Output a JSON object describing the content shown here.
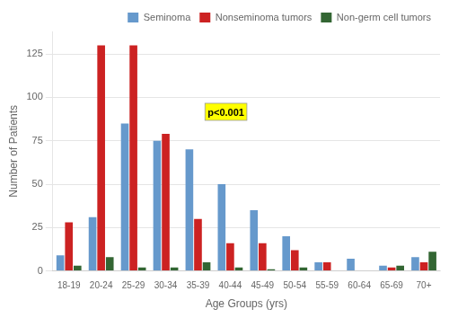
{
  "chart_data": {
    "type": "bar",
    "categories": [
      "18-19",
      "20-24",
      "25-29",
      "30-34",
      "35-39",
      "40-44",
      "45-49",
      "50-54",
      "55-59",
      "60-64",
      "65-69",
      "70+"
    ],
    "series": [
      {
        "name": "Seminoma",
        "color": "#6699CC",
        "values": [
          9,
          31,
          85,
          75,
          70,
          50,
          35,
          20,
          5,
          7,
          3,
          8
        ]
      },
      {
        "name": "Nonseminoma tumors",
        "color": "#CC2222",
        "values": [
          28,
          130,
          130,
          79,
          30,
          16,
          16,
          12,
          5,
          0,
          2,
          5
        ]
      },
      {
        "name": "Non-germ cell tumors",
        "color": "#336633",
        "values": [
          3,
          8,
          2,
          2,
          5,
          2,
          1,
          2,
          0,
          0,
          3,
          11
        ]
      }
    ],
    "x_label": "Age Groups (yrs)",
    "y_label": "Number of Patients",
    "ylim": [
      0,
      138
    ],
    "yticks": [
      0,
      25,
      50,
      75,
      100,
      125
    ],
    "grid": true,
    "legend": "upper right",
    "annotation": "p<0.001"
  }
}
